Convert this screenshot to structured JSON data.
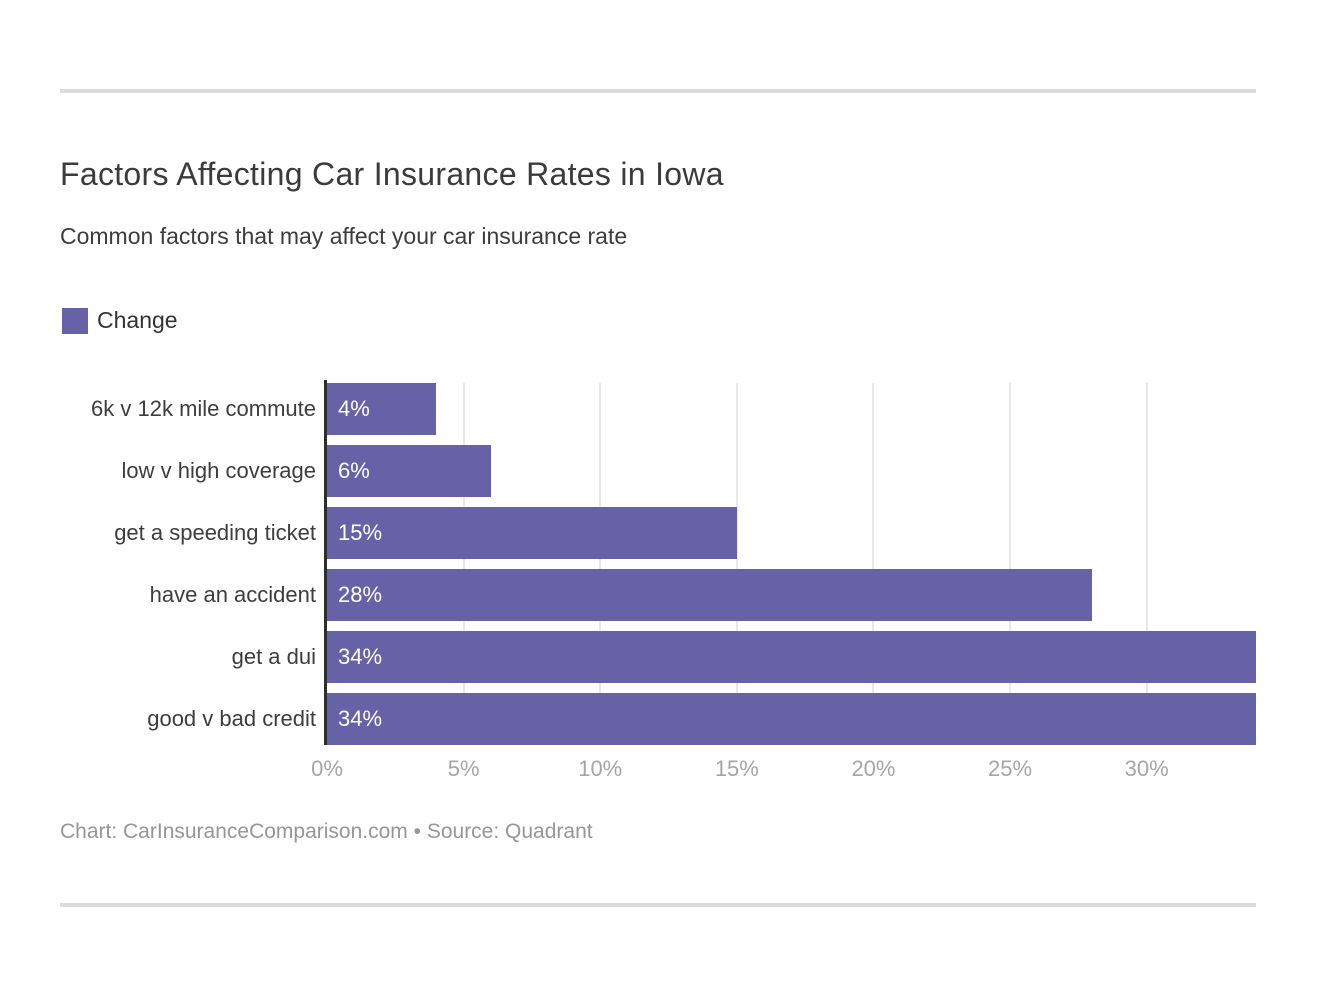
{
  "page": {
    "title": "Factors Affecting Car Insurance Rates in Iowa",
    "subtitle": "Common factors that may affect your car insurance rate",
    "footer": "Chart: CarInsuranceComparison.com • Source: Quadrant"
  },
  "legend": {
    "label": "Change",
    "swatch_color": "#6762a8"
  },
  "chart_data": {
    "type": "bar",
    "orientation": "horizontal",
    "title": "Factors Affecting Car Insurance Rates in Iowa",
    "subtitle": "Common factors that may affect your car insurance rate",
    "series_name": "Change",
    "categories": [
      "6k v 12k mile commute",
      "low v high coverage",
      "get a speeding ticket",
      "have an accident",
      "get a dui",
      "good v bad credit"
    ],
    "values": [
      4,
      6,
      15,
      28,
      34,
      34
    ],
    "value_labels": [
      "4%",
      "6%",
      "15%",
      "28%",
      "34%",
      "34%"
    ],
    "xlabel": "",
    "ylabel": "",
    "xlim": [
      0,
      34
    ],
    "x_tick_values": [
      0,
      5,
      10,
      15,
      20,
      25,
      30
    ],
    "x_tick_labels": [
      "0%",
      "5%",
      "10%",
      "15%",
      "20%",
      "25%",
      "30%"
    ],
    "grid": "vertical-on",
    "legend_position": "top-left",
    "bar_color": "#6762a8",
    "value_label_color": "#ffffff",
    "attribution": "Chart: CarInsuranceComparison.com • Source: Quadrant"
  },
  "colors": {
    "bar": "#6762a8",
    "axis_line": "#2e2e2e",
    "gridline": "#e8e8e8",
    "tick_label": "#a5a5a5",
    "title_text": "#3b3b3b",
    "divider": "#dcdcdc",
    "footer_text": "#969696"
  }
}
